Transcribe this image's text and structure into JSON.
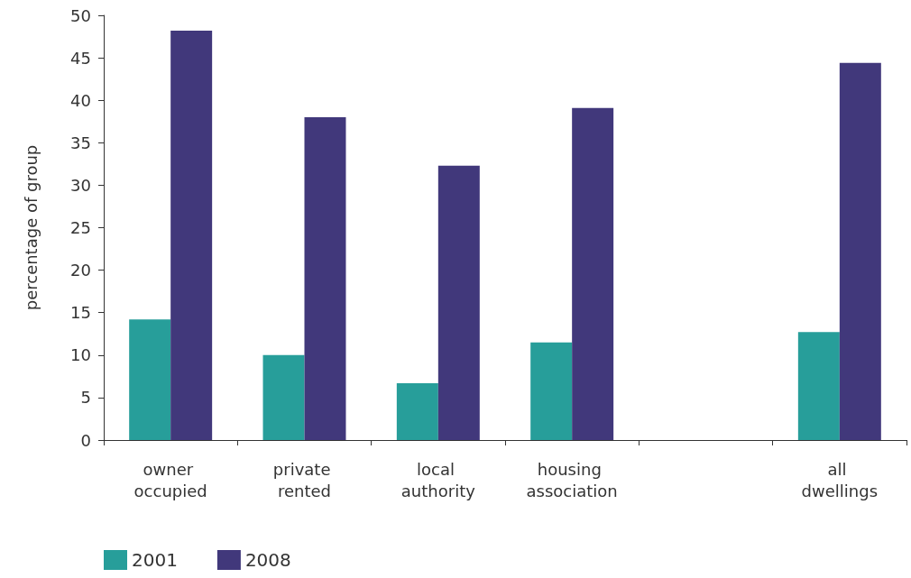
{
  "chart_data": {
    "type": "bar",
    "ylabel": "percentage of group",
    "categories": [
      "owner occupied",
      "private rented",
      "local authority",
      "housing association",
      null,
      "all dwellings"
    ],
    "series": [
      {
        "name": "2001",
        "color": "#279e9a",
        "values": [
          14.2,
          10.0,
          6.7,
          11.5,
          null,
          12.7
        ]
      },
      {
        "name": "2008",
        "color": "#41387b",
        "values": [
          48.2,
          38.0,
          32.3,
          39.1,
          null,
          44.4
        ]
      }
    ],
    "ylim": [
      0,
      50
    ],
    "yticks": [
      0,
      5,
      10,
      15,
      20,
      25,
      30,
      35,
      40,
      45,
      50
    ],
    "grid": false,
    "legend": "bottom left"
  }
}
